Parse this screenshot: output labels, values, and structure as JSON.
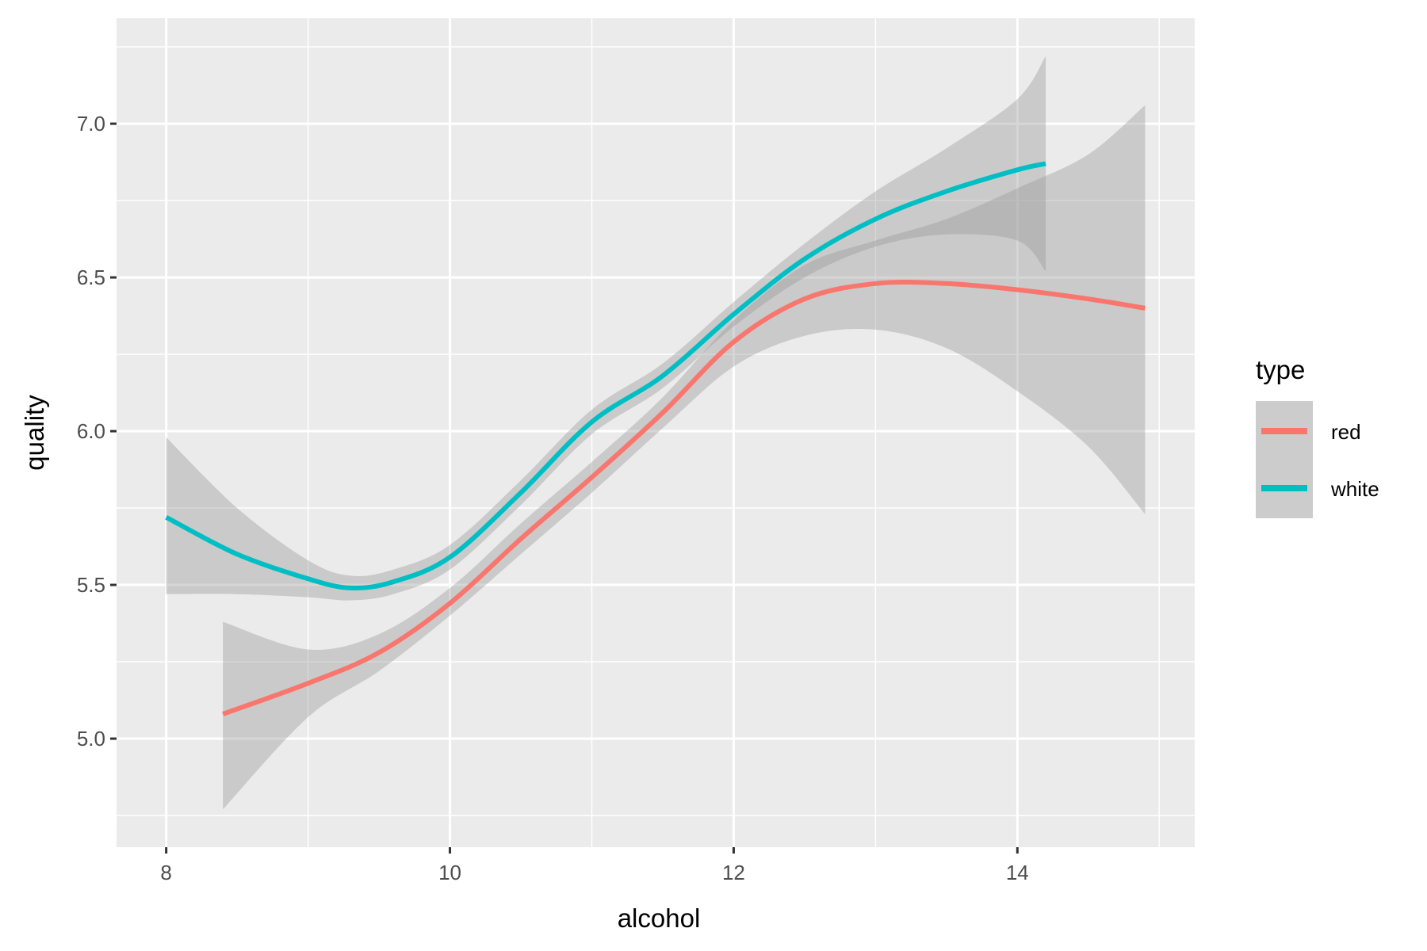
{
  "chart_data": {
    "type": "line",
    "subtype": "smoothed line with confidence ribbons (geom_smooth)",
    "title": "",
    "xlabel": "alcohol",
    "ylabel": "quality",
    "xlim": [
      7.65,
      15.25
    ],
    "ylim": [
      4.647,
      7.343
    ],
    "x_ticks": [
      8,
      10,
      12,
      14
    ],
    "x_tick_labels": [
      "8",
      "10",
      "12",
      "14"
    ],
    "x_minor": [
      9,
      11,
      13,
      15
    ],
    "y_ticks": [
      5.0,
      5.5,
      6.0,
      6.5,
      7.0
    ],
    "y_tick_labels": [
      "5.0",
      "5.5",
      "6.0",
      "6.5",
      "7.0"
    ],
    "y_minor": [
      4.75,
      5.25,
      5.75,
      6.25,
      6.75,
      7.25
    ],
    "grid": true,
    "legend": {
      "title": "type",
      "position": "right"
    },
    "series": [
      {
        "name": "red",
        "color": "#F8766D",
        "x": [
          8.4,
          9.0,
          9.5,
          10.0,
          10.5,
          11.0,
          11.5,
          12.0,
          12.5,
          13.0,
          13.5,
          14.0,
          14.5,
          14.9
        ],
        "values": [
          5.08,
          5.18,
          5.28,
          5.44,
          5.65,
          5.85,
          6.06,
          6.29,
          6.43,
          6.48,
          6.48,
          6.46,
          6.43,
          6.4
        ],
        "lower": [
          4.77,
          5.07,
          5.22,
          5.4,
          5.6,
          5.8,
          6.01,
          6.21,
          6.31,
          6.33,
          6.27,
          6.13,
          5.95,
          5.73
        ],
        "upper": [
          5.38,
          5.29,
          5.34,
          5.49,
          5.7,
          5.9,
          6.11,
          6.36,
          6.54,
          6.62,
          6.69,
          6.79,
          6.9,
          7.06
        ]
      },
      {
        "name": "white",
        "color": "#00BFC4",
        "x": [
          8.0,
          8.5,
          9.0,
          9.3,
          9.6,
          10.0,
          10.5,
          11.0,
          11.5,
          12.0,
          12.5,
          13.0,
          13.5,
          14.0,
          14.2
        ],
        "values": [
          5.72,
          5.6,
          5.52,
          5.49,
          5.51,
          5.59,
          5.8,
          6.03,
          6.18,
          6.38,
          6.56,
          6.69,
          6.78,
          6.85,
          6.87
        ],
        "lower": [
          5.47,
          5.47,
          5.46,
          5.45,
          5.47,
          5.55,
          5.76,
          5.99,
          6.14,
          6.34,
          6.5,
          6.6,
          6.64,
          6.62,
          6.52
        ],
        "upper": [
          5.98,
          5.75,
          5.58,
          5.53,
          5.55,
          5.63,
          5.84,
          6.07,
          6.22,
          6.42,
          6.61,
          6.78,
          6.92,
          7.08,
          7.22
        ]
      }
    ]
  },
  "colors": {
    "panel_bg": "#EBEBEB",
    "grid": "#FFFFFF",
    "ribbon": "#999999",
    "legend_key_bg": "#CCCCCC",
    "tick": "#333333"
  },
  "legend": {
    "title": "type",
    "items": [
      {
        "label": "red",
        "color": "#F8766D"
      },
      {
        "label": "white",
        "color": "#00BFC4"
      }
    ]
  }
}
